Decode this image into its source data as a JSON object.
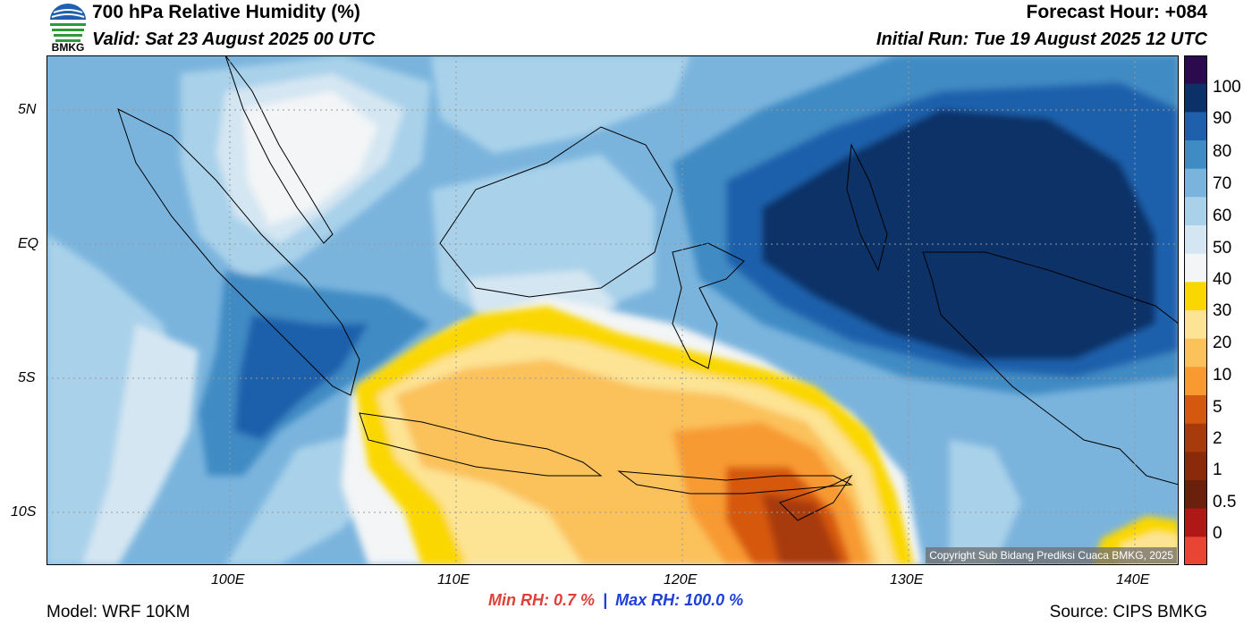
{
  "header": {
    "logo_label": "BMKG",
    "title": "700 hPa Relative Humidity (%)",
    "valid": "Valid: Sat 23 August 2025 00 UTC",
    "forecast_hour": "Forecast Hour: +084",
    "initial_run": "Initial Run: Tue 19 August 2025 12 UTC"
  },
  "map": {
    "lat_ticks": [
      "5N",
      "EQ",
      "5S",
      "10S"
    ],
    "lon_ticks": [
      "100E",
      "110E",
      "120E",
      "130E",
      "140E"
    ],
    "copyright": "Copyright Sub Bidang Prediksi Cuaca BMKG, 2025",
    "colors": {
      "border": "#000000",
      "grid": "#999999"
    }
  },
  "colorbar": {
    "labels": [
      "100",
      "90",
      "80",
      "70",
      "60",
      "50",
      "40",
      "30",
      "20",
      "10",
      "5",
      "2",
      "1",
      "0.5",
      "0"
    ],
    "colors": [
      "#2b0b4e",
      "#0b3168",
      "#1f60ac",
      "#3f8bc4",
      "#7ab4dd",
      "#a9d1ea",
      "#d4e6f2",
      "#f3f5f6",
      "#fbd700",
      "#fde394",
      "#fbc15a",
      "#f89a30",
      "#d5580f",
      "#a83b0c",
      "#8a2a0a",
      "#6a200c",
      "#b01818",
      "#e84535"
    ]
  },
  "footer": {
    "model": "Model: WRF 10KM",
    "min_rh": "Min RH:   0.7 %",
    "separator": "|",
    "max_rh": "Max RH: 100.0 %",
    "source": "Source: CIPS BMKG",
    "min_color": "#e0403a",
    "max_color": "#1e3fd8"
  }
}
